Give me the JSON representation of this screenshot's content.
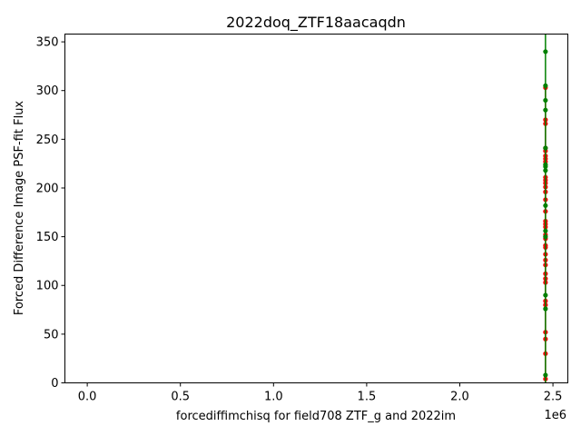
{
  "chart_data": {
    "type": "scatter",
    "title": "2022doq_ZTF18aacaqdn",
    "xlabel": "forcediffimchisq for field708 ZTF_g and 2022im",
    "ylabel": "Forced Difference Image PSF-fit Flux",
    "x_offset_label": "1e6",
    "xlim": [
      -0.12,
      2.58
    ],
    "ylim": [
      0,
      358
    ],
    "x_ticks": [
      0.0,
      0.5,
      1.0,
      1.5,
      2.0,
      2.5
    ],
    "x_tick_labels": [
      "0.0",
      "0.5",
      "1.0",
      "1.5",
      "2.0",
      "2.5"
    ],
    "y_ticks": [
      0,
      50,
      100,
      150,
      200,
      250,
      300,
      350
    ],
    "y_tick_labels": [
      "0",
      "50",
      "100",
      "150",
      "200",
      "250",
      "300",
      "350"
    ],
    "grid": false,
    "series": [
      {
        "color": "#ff0000",
        "x": 2.46,
        "y_line": [
          0,
          306
        ],
        "points": [
          4,
          30,
          45,
          52,
          80,
          84,
          103,
          107,
          112,
          121,
          126,
          132,
          139,
          141,
          148,
          152,
          160,
          163,
          166,
          176,
          188,
          196,
          201,
          205,
          208,
          211,
          227,
          230,
          233,
          238,
          241,
          266,
          270,
          303
        ]
      },
      {
        "color": "#008000",
        "x": 2.46,
        "y_line": [
          0,
          358
        ],
        "points": [
          8,
          76,
          90,
          150,
          156,
          182,
          218,
          222,
          224,
          241,
          280,
          290,
          305,
          340
        ]
      }
    ]
  }
}
